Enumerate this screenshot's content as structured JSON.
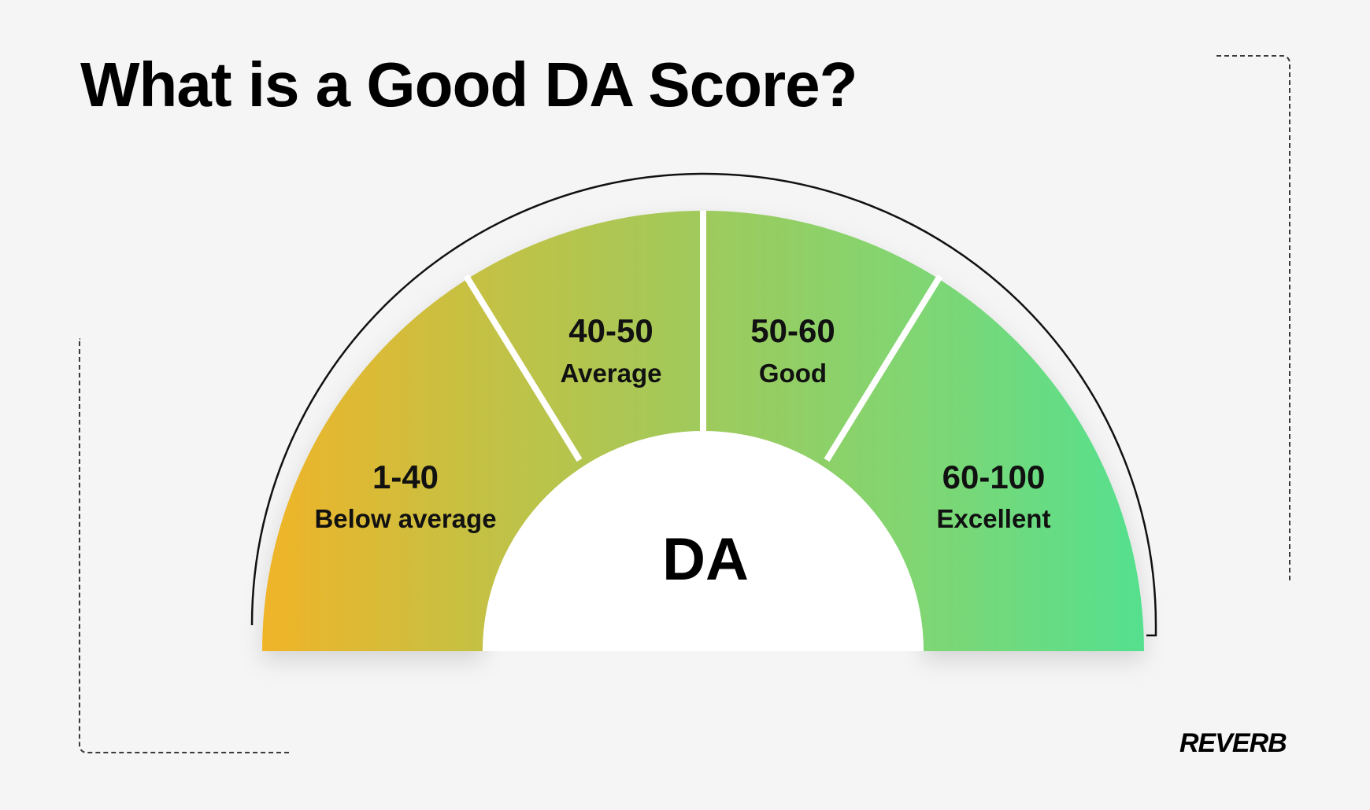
{
  "title": "What is a Good DA Score?",
  "center_label": "DA",
  "segments": [
    {
      "range": "1-40",
      "label": "Below average"
    },
    {
      "range": "40-50",
      "label": "Average"
    },
    {
      "range": "50-60",
      "label": "Good"
    },
    {
      "range": "60-100",
      "label": "Excellent"
    }
  ],
  "gradient_colors": [
    "#f0b428",
    "#c4c144",
    "#9fca5c",
    "#7fd673",
    "#55e08f"
  ],
  "logo_text": "REVERB"
}
